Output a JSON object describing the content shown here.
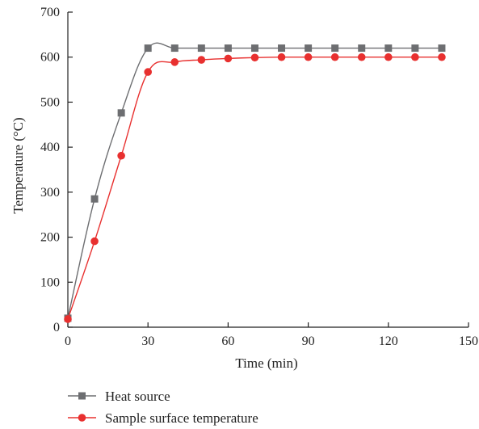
{
  "chart_data": {
    "type": "line",
    "title": "",
    "xlabel": "Time (min)",
    "ylabel": "Temperature (°C)",
    "xlim": [
      0,
      150
    ],
    "ylim": [
      0,
      700
    ],
    "x_ticks": [
      0,
      30,
      60,
      90,
      120,
      150
    ],
    "y_ticks": [
      0,
      100,
      200,
      300,
      400,
      500,
      600,
      700
    ],
    "grid": false,
    "legend_position": "bottom-left",
    "x": [
      0,
      10,
      20,
      30,
      40,
      50,
      60,
      70,
      80,
      90,
      100,
      110,
      120,
      130,
      140
    ],
    "series": [
      {
        "name": "Heat source",
        "marker": "square",
        "color": "#6d6e71",
        "values": [
          20,
          285,
          476,
          620,
          620,
          620,
          620,
          620,
          620,
          620,
          620,
          620,
          620,
          620,
          620
        ]
      },
      {
        "name": "Sample surface temperature",
        "marker": "circle",
        "color": "#e8302f",
        "values": [
          18,
          191,
          381,
          567,
          589,
          594,
          597,
          599,
          600,
          600,
          600,
          600,
          600,
          600,
          600
        ]
      }
    ]
  }
}
